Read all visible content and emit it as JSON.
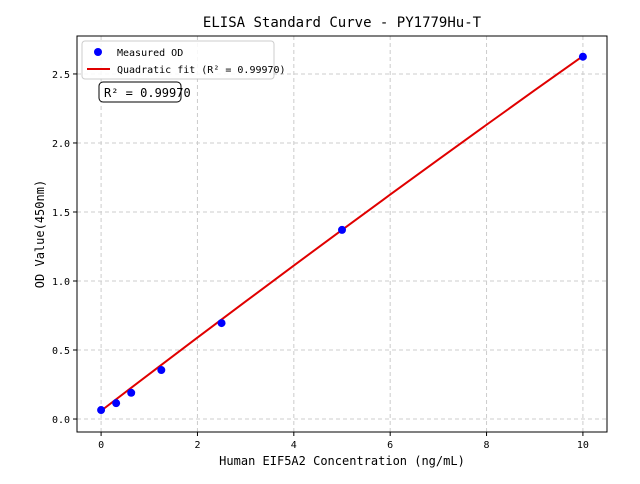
{
  "chart_data": {
    "type": "scatter",
    "title": "ELISA Standard Curve - PY1779Hu-T",
    "xlabel": "Human EIF5A2 Concentration (ng/mL)",
    "ylabel": "OD Value(450nm)",
    "xlim": [
      -0.5,
      10.5
    ],
    "ylim": [
      -0.094,
      2.775
    ],
    "xticks": [
      0,
      2,
      4,
      6,
      8,
      10
    ],
    "xtick_labels": [
      "0",
      "2",
      "4",
      "6",
      "8",
      "10"
    ],
    "yticks": [
      0,
      0.5,
      1,
      1.5,
      2,
      2.5
    ],
    "ytick_labels": [
      "0.0",
      "0.5",
      "1.0",
      "1.5",
      "2.0",
      "2.5"
    ],
    "grid": true,
    "legend_position": "top-left",
    "series": [
      {
        "name": "Measured OD",
        "kind": "scatter",
        "color": "#0000ff",
        "x": [
          0,
          0.3125,
          0.625,
          1.25,
          2.5,
          5,
          10
        ],
        "y": [
          0.065,
          0.115,
          0.19,
          0.355,
          0.695,
          1.37,
          2.625
        ]
      },
      {
        "name": "Quadratic fit (R² = 0.99970)",
        "kind": "line",
        "color": "#e00000",
        "x": [
          0,
          1,
          2,
          3,
          4,
          5,
          6,
          7,
          8,
          9,
          10
        ],
        "y": [
          0.06,
          0.326,
          0.59,
          0.852,
          1.112,
          1.37,
          1.626,
          1.88,
          2.132,
          2.382,
          2.63
        ]
      }
    ],
    "annotation": "R² = 0.99970"
  }
}
